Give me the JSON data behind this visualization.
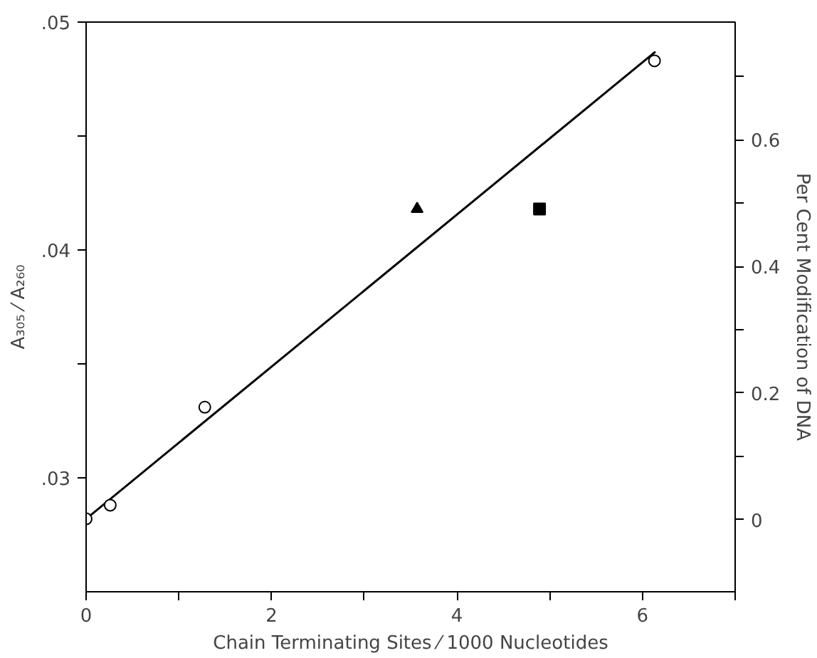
{
  "chart_data": {
    "type": "scatter",
    "xlabel": "Chain Terminating Sites ⁄ 1000 Nucleotides",
    "ylabel": "A₃₀₅ ⁄ A₂₆₀",
    "y2label": "Per Cent Modification of DNA",
    "series": [
      {
        "marker": "circle",
        "color": "#000000",
        "x": [
          0,
          0.26,
          1.28,
          6.13
        ],
        "values": [
          0.0282,
          0.0288,
          0.0331,
          0.0483
        ]
      },
      {
        "marker": "triangle",
        "color": "#000000",
        "x": [
          3.57
        ],
        "values": [
          0.0418
        ]
      },
      {
        "marker": "square",
        "color": "#000000",
        "x": [
          4.89
        ],
        "values": [
          0.0418
        ]
      },
      {
        "type": "line",
        "marker": "none",
        "color": "#000000",
        "x": [
          0,
          6.14
        ],
        "values": [
          0.0282,
          0.0487
        ]
      }
    ],
    "xlim": [
      0,
      7
    ],
    "xticks": [
      0,
      {
        "value": 1,
        "label": null
      },
      2,
      {
        "value": 3,
        "label": null
      },
      4,
      {
        "value": 5,
        "label": null
      },
      6,
      {
        "value": 7,
        "label": null
      }
    ],
    "ylim": [
      0.025,
      0.05
    ],
    "yticks": [
      {
        "value": 0.03,
        "label": ".03"
      },
      {
        "value": 0.035,
        "label": null
      },
      {
        "value": 0.04,
        "label": ".04"
      },
      {
        "value": 0.045,
        "label": null
      },
      {
        "value": 0.05,
        "label": ".05"
      }
    ],
    "y2lim": [
      -0.114,
      0.786
    ],
    "y2ticks": [
      0,
      {
        "value": 0.1,
        "label": null
      },
      0.2,
      {
        "value": 0.3,
        "label": null
      },
      0.4,
      {
        "value": 0.5,
        "label": null
      },
      0.6,
      {
        "value": 0.7,
        "label": null
      }
    ],
    "grid": false
  }
}
